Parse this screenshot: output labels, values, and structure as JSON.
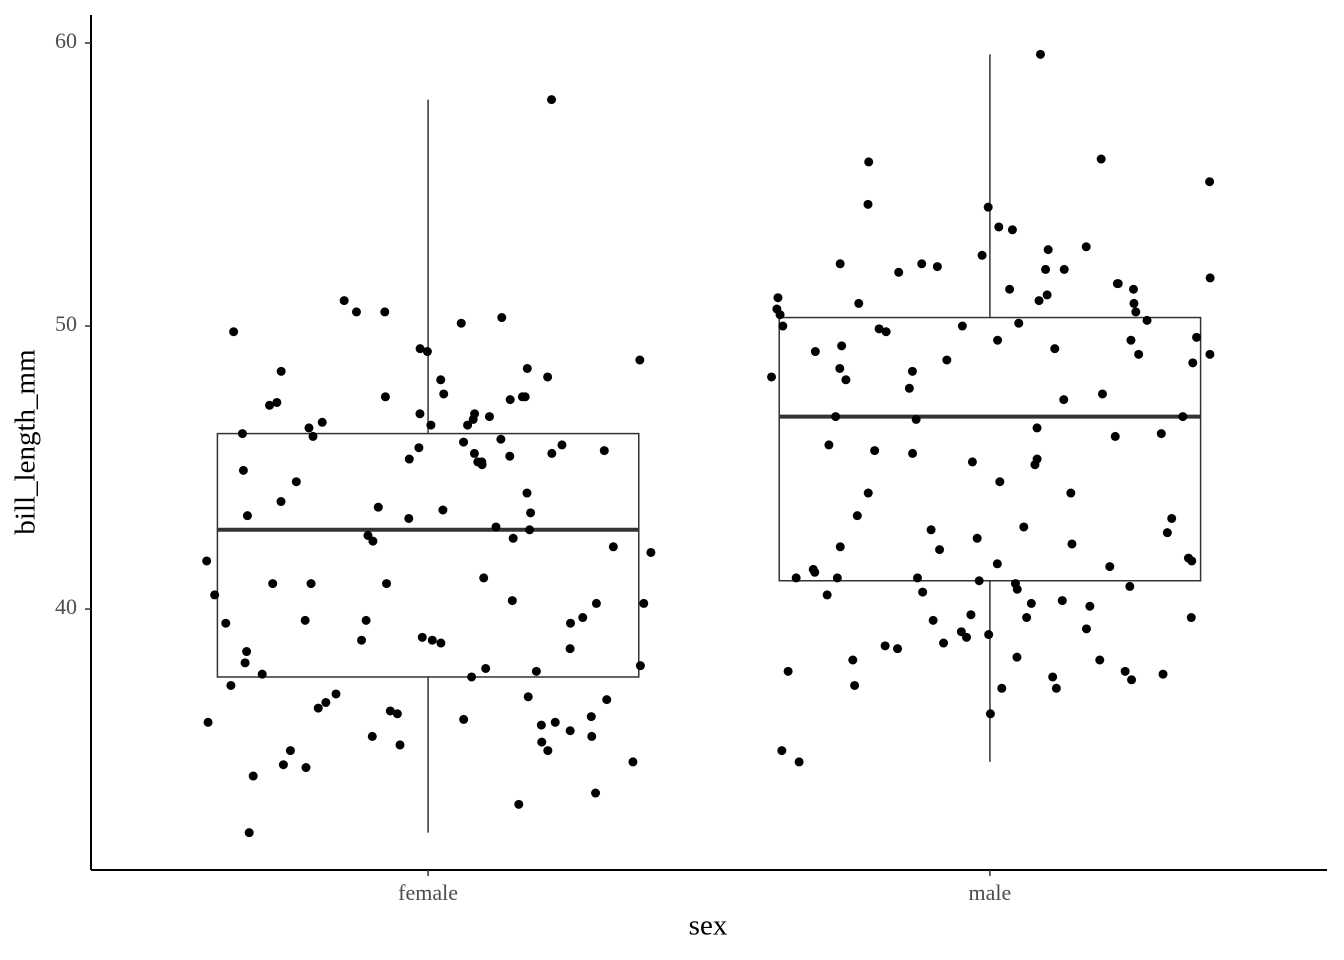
{
  "chart_data": {
    "type": "box",
    "x_label": "sex",
    "y_label": "bill_length_mm",
    "categories": [
      "female",
      "male"
    ],
    "boxes": [
      {
        "low": 32.1,
        "q1": 37.6,
        "median": 42.8,
        "q3": 46.2,
        "high": 58.0
      },
      {
        "low": 34.6,
        "q1": 41.0,
        "median": 46.8,
        "q3": 50.3,
        "high": 59.6
      }
    ],
    "points": [
      [
        58.0,
        50.9,
        50.1,
        50.5,
        50.5,
        50.3,
        49.8,
        49.1,
        49.2,
        48.4,
        48.8,
        48.5,
        48.2,
        48.1,
        47.5,
        47.5,
        47.6,
        47.5,
        47.4,
        47.3,
        47.2,
        46.9,
        46.8,
        46.9,
        46.7,
        46.6,
        46.5,
        46.5,
        46.4,
        46.2,
        46.1,
        46.0,
        45.9,
        45.8,
        45.7,
        45.6,
        45.5,
        45.5,
        45.4,
        45.3,
        45.2,
        45.2,
        45.1,
        44.9,
        44.5,
        44.1,
        43.8,
        43.6,
        43.5,
        43.4,
        43.3,
        43.2,
        42.9,
        42.8,
        42.6,
        42.5,
        42.4,
        42.2,
        42.0,
        41.7,
        41.1,
        40.9,
        40.9,
        40.9,
        40.5,
        40.3,
        40.2,
        40.2,
        39.7,
        39.6,
        39.6,
        39.5,
        39.5,
        39.0,
        38.9,
        38.9,
        38.8,
        38.6,
        38.5,
        38.1,
        38.0,
        37.9,
        37.8,
        37.7,
        37.6,
        37.3,
        37.0,
        36.9,
        36.8,
        36.7,
        36.5,
        36.4,
        36.3,
        36.2,
        36.1,
        36.0,
        36.0,
        35.9,
        35.7,
        35.5,
        35.5,
        35.3,
        35.2,
        35.0,
        35.0,
        34.6,
        34.5,
        34.4,
        34.1,
        33.5,
        33.1,
        32.1
      ],
      [
        59.6,
        55.9,
        55.8,
        55.1,
        54.3,
        54.2,
        53.5,
        53.4,
        52.8,
        52.7,
        52.5,
        52.2,
        52.2,
        52.1,
        52.0,
        52.0,
        51.9,
        51.7,
        51.5,
        51.5,
        51.3,
        51.3,
        51.1,
        51.0,
        50.9,
        50.8,
        50.8,
        50.6,
        50.5,
        50.4,
        50.2,
        50.1,
        50.0,
        50.0,
        49.9,
        49.8,
        49.6,
        49.5,
        49.5,
        49.3,
        49.2,
        49.1,
        49.0,
        49.0,
        48.8,
        48.7,
        48.5,
        48.4,
        48.2,
        48.1,
        47.8,
        47.6,
        47.4,
        46.8,
        46.8,
        46.7,
        46.4,
        46.2,
        46.1,
        45.8,
        45.6,
        45.5,
        45.3,
        45.2,
        45.1,
        44.5,
        44.1,
        44.1,
        43.3,
        43.2,
        42.9,
        42.8,
        42.7,
        42.5,
        42.3,
        42.2,
        42.1,
        41.8,
        41.7,
        41.6,
        41.5,
        41.4,
        41.3,
        41.1,
        41.1,
        41.1,
        41.0,
        40.9,
        40.8,
        40.7,
        40.6,
        40.5,
        40.3,
        40.2,
        40.1,
        39.8,
        39.7,
        39.7,
        39.6,
        39.3,
        39.2,
        39.1,
        39.0,
        38.8,
        38.7,
        38.6,
        38.3,
        38.2,
        38.2,
        37.8,
        37.8,
        37.7,
        37.6,
        37.5,
        37.3,
        37.2,
        37.2,
        36.3,
        35.0,
        34.6
      ]
    ],
    "ylim": [
      30.78,
      60.99
    ],
    "yticks": [
      40,
      50,
      60
    ],
    "box_color": "#333333",
    "point_color": "#000000",
    "grid": false
  }
}
